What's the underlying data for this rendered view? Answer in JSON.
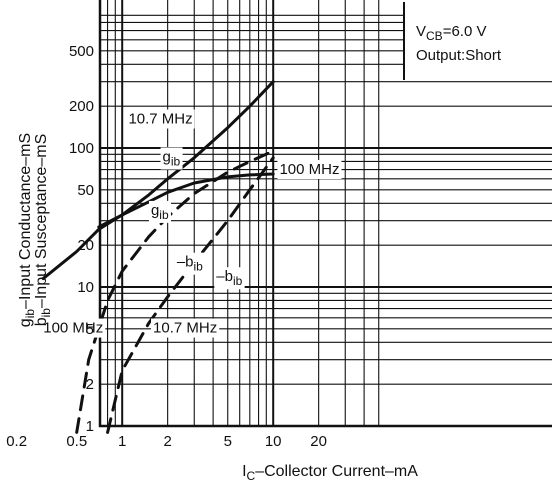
{
  "chart_data": {
    "type": "line",
    "x_scale": "log",
    "y_scale": "log",
    "xlim": [
      0.1,
      50
    ],
    "ylim": [
      1,
      1000
    ],
    "grid": true,
    "xlabel": {
      "main": "I",
      "sub": "C",
      "rest": "–Collector Current–mA"
    },
    "ylabel_line1": {
      "main": "g",
      "sub": "ib",
      "rest": "–Input Conductance–mS"
    },
    "ylabel_line2": {
      "main": "b",
      "sub": "ib",
      "rest": "–Input Susceptance–mS"
    },
    "x_ticks": [
      {
        "v": 0.2,
        "label": "0.2"
      },
      {
        "v": 0.5,
        "label": "0.5"
      },
      {
        "v": 1,
        "label": "1"
      },
      {
        "v": 2,
        "label": "2"
      },
      {
        "v": 5,
        "label": "5"
      },
      {
        "v": 10,
        "label": "10"
      },
      {
        "v": 20,
        "label": "20"
      }
    ],
    "y_ticks": [
      {
        "v": 1,
        "label": "1"
      },
      {
        "v": 2,
        "label": "2"
      },
      {
        "v": 5,
        "label": "5"
      },
      {
        "v": 10,
        "label": "10"
      },
      {
        "v": 20,
        "label": "20"
      },
      {
        "v": 50,
        "label": "50"
      },
      {
        "v": 100,
        "label": "100"
      },
      {
        "v": 200,
        "label": "200"
      },
      {
        "v": 500,
        "label": "500"
      }
    ],
    "conditions": {
      "line1_main": "V",
      "line1_sub": "CB",
      "line1_rest": "=6.0 V",
      "line2": "Output:Short"
    },
    "series": [
      {
        "id": "gib-10.7",
        "dash": false,
        "points": [
          [
            0.3,
            11.5
          ],
          [
            0.5,
            18
          ],
          [
            0.7,
            26
          ],
          [
            1,
            33
          ],
          [
            1.5,
            46
          ],
          [
            2,
            60
          ],
          [
            3,
            85
          ],
          [
            5,
            140
          ],
          [
            7,
            200
          ],
          [
            10,
            300
          ]
        ]
      },
      {
        "id": "gib-100",
        "dash": false,
        "points": [
          [
            0.7,
            27
          ],
          [
            1,
            33
          ],
          [
            1.5,
            41
          ],
          [
            2,
            48
          ],
          [
            3,
            56
          ],
          [
            5,
            62
          ],
          [
            7,
            64
          ],
          [
            10,
            65
          ]
        ]
      },
      {
        "id": "bib-100",
        "dash": true,
        "points": [
          [
            0.5,
            0.9
          ],
          [
            0.6,
            3
          ],
          [
            0.8,
            8
          ],
          [
            1,
            13
          ],
          [
            1.5,
            23
          ],
          [
            2,
            32
          ],
          [
            3,
            47
          ],
          [
            5,
            67
          ],
          [
            7,
            80
          ],
          [
            10,
            95
          ]
        ]
      },
      {
        "id": "bib-10.7",
        "dash": true,
        "points": [
          [
            0.8,
            0.9
          ],
          [
            1,
            2.5
          ],
          [
            1.5,
            5.5
          ],
          [
            2,
            8.5
          ],
          [
            3,
            15
          ],
          [
            5,
            30
          ],
          [
            7,
            50
          ],
          [
            10,
            85
          ]
        ]
      }
    ],
    "annotations": [
      {
        "id": "ann-10.7-top",
        "main": "10.7 MHz",
        "x": 1.1,
        "y": 150
      },
      {
        "id": "ann-gib-top",
        "main": "g",
        "sub": "ib",
        "x": 1.85,
        "y": 80
      },
      {
        "id": "ann-100-right",
        "main": "100 MHz",
        "x": 11,
        "y": 65
      },
      {
        "id": "ann-gib-low",
        "main": "g",
        "sub": "ib",
        "x": 1.55,
        "y": 33
      },
      {
        "id": "ann-bib-1",
        "main": "–b",
        "sub": "ib",
        "x": 2.3,
        "y": 14
      },
      {
        "id": "ann-bib-2",
        "main": "–b",
        "sub": "ib",
        "x": 4.2,
        "y": 11
      },
      {
        "id": "ann-100-left",
        "main": "100 MHz",
        "x": 0.3,
        "y": 4.7
      },
      {
        "id": "ann-10.7-low",
        "main": "10.7 MHz",
        "x": 1.6,
        "y": 4.7
      }
    ]
  }
}
